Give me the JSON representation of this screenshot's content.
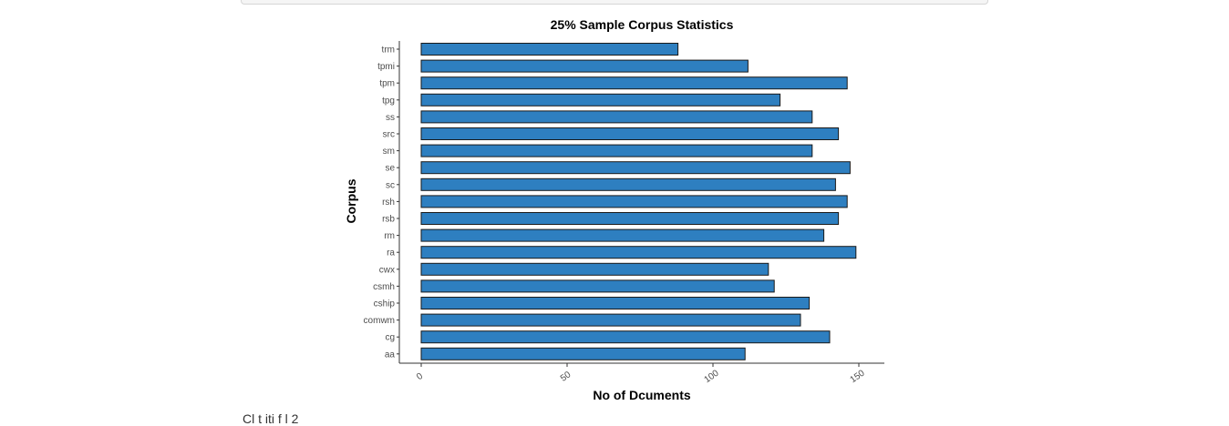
{
  "chart_data": {
    "type": "bar",
    "orientation": "horizontal",
    "title": "25% Sample Corpus Statistics",
    "xlabel": "No of Dcuments",
    "ylabel": "Corpus",
    "xlim": [
      0,
      155
    ],
    "xticks": [
      0,
      50,
      100,
      150
    ],
    "grid": false,
    "bar_color": "#2e7fc0",
    "bar_edge_color": "#1a1a1a",
    "categories": [
      "trm",
      "tpmi",
      "tpm",
      "tpg",
      "ss",
      "src",
      "sm",
      "se",
      "sc",
      "rsh",
      "rsb",
      "rm",
      "ra",
      "cwx",
      "csmh",
      "cship",
      "comwm",
      "cg",
      "aa"
    ],
    "values": [
      88,
      112,
      146,
      123,
      134,
      143,
      134,
      147,
      142,
      146,
      143,
      138,
      149,
      119,
      121,
      133,
      130,
      140,
      111
    ]
  },
  "footer_text": "Cl   t              iti    f   l  2"
}
